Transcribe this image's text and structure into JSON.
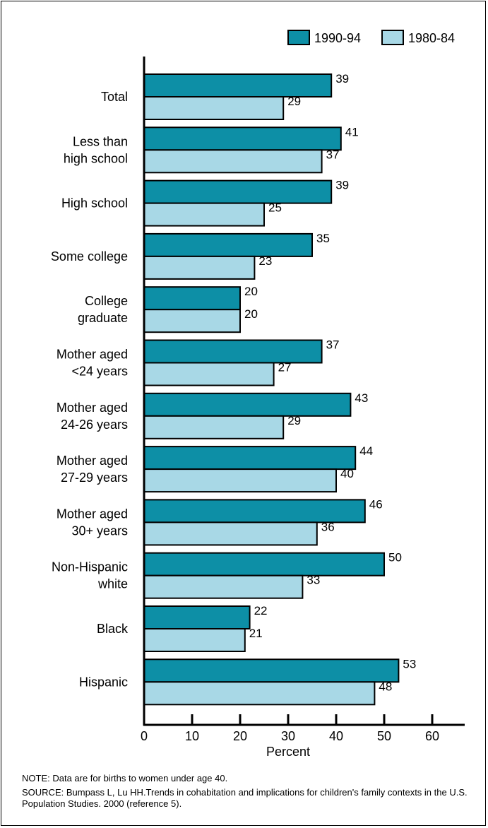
{
  "chart_data": {
    "type": "bar",
    "orientation": "horizontal",
    "categories": [
      [
        "Total"
      ],
      [
        "Less than",
        "high school"
      ],
      [
        "High school"
      ],
      [
        "Some college"
      ],
      [
        "College",
        "graduate"
      ],
      [
        "Mother aged",
        "<24 years"
      ],
      [
        "Mother aged",
        "24-26 years"
      ],
      [
        "Mother aged",
        "27-29 years"
      ],
      [
        "Mother aged",
        "30+ years"
      ],
      [
        "Non-Hispanic",
        "white"
      ],
      [
        "Black"
      ],
      [
        "Hispanic"
      ]
    ],
    "series": [
      {
        "name": "1990-94",
        "color": "#0d8fa6",
        "values": [
          39,
          41,
          39,
          35,
          20,
          37,
          43,
          44,
          46,
          50,
          22,
          53
        ]
      },
      {
        "name": "1980-84",
        "color": "#a8d8e6",
        "values": [
          29,
          37,
          25,
          23,
          20,
          27,
          29,
          40,
          36,
          33,
          21,
          48
        ]
      }
    ],
    "xlabel": "Percent",
    "xlim": [
      0,
      60
    ],
    "xticks": [
      0,
      10,
      20,
      30,
      40,
      50,
      60
    ],
    "legend_position": "top-right",
    "grid": false
  },
  "notes": {
    "note": "NOTE: Data are for births to women under age 40.",
    "source": "SOURCE: Bumpass L, Lu HH.Trends in cohabitation and implications for children's family contexts in the U.S. Population Studies. 2000 (reference 5)."
  }
}
